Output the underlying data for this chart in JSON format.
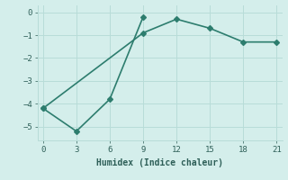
{
  "line1_x": [
    0,
    3,
    6,
    9
  ],
  "line1_y": [
    -4.2,
    -5.2,
    -3.8,
    -0.2
  ],
  "line2_x": [
    0,
    9,
    12,
    15,
    18,
    21
  ],
  "line2_y": [
    -4.2,
    -0.9,
    -0.3,
    -0.7,
    -1.3,
    -1.3
  ],
  "line_color": "#2d7d6e",
  "bg_color": "#d4eeeb",
  "grid_color": "#b8dcd8",
  "xlabel": "Humidex (Indice chaleur)",
  "xlim": [
    -0.5,
    21.5
  ],
  "ylim": [
    -5.6,
    0.3
  ],
  "xticks": [
    0,
    3,
    6,
    9,
    12,
    15,
    18,
    21
  ],
  "yticks": [
    0,
    -1,
    -2,
    -3,
    -4,
    -5
  ],
  "font_color": "#2e5f58",
  "marker": "D",
  "markersize": 3,
  "linewidth": 1.2
}
